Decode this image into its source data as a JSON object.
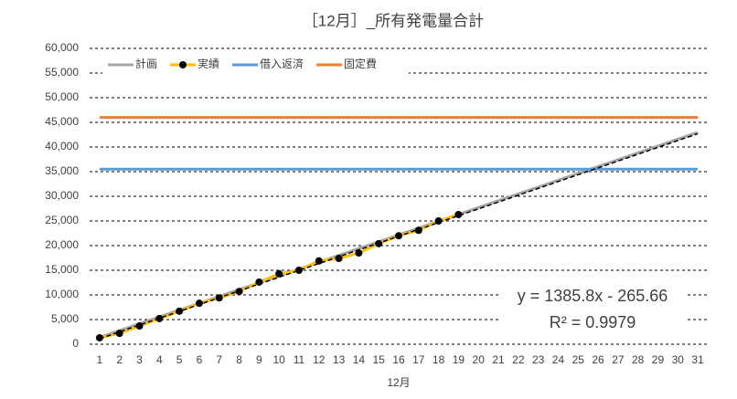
{
  "chart_data": {
    "type": "line",
    "title": "［12月］_所有発電量合計",
    "x_label": "12月",
    "categories": [
      "1",
      "2",
      "3",
      "4",
      "5",
      "6",
      "7",
      "8",
      "9",
      "10",
      "11",
      "12",
      "13",
      "14",
      "15",
      "16",
      "17",
      "18",
      "19",
      "20",
      "21",
      "22",
      "23",
      "24",
      "25",
      "26",
      "27",
      "28",
      "29",
      "30",
      "31"
    ],
    "series": [
      {
        "name": "計画",
        "color": "#a5a5a5",
        "values": [
          1386,
          2772,
          4158,
          5544,
          6930,
          8316,
          9702,
          11088,
          12474,
          13860,
          15246,
          16632,
          18018,
          19404,
          20790,
          22176,
          23562,
          24948,
          26334,
          27720,
          29106,
          30492,
          31878,
          33264,
          34650,
          36036,
          37422,
          38808,
          40194,
          41580,
          42966
        ]
      },
      {
        "name": "実績",
        "color": "#ffc000",
        "marker": "#000000",
        "values": [
          1300,
          2200,
          3700,
          5200,
          6700,
          8300,
          9400,
          10700,
          12600,
          14300,
          15000,
          16900,
          17400,
          18500,
          20400,
          22000,
          23100,
          25000,
          26300,
          null,
          null,
          null,
          null,
          null,
          null,
          null,
          null,
          null,
          null,
          null,
          null
        ]
      },
      {
        "name": "借入返済",
        "color": "#5b9bd5",
        "values": [
          35500,
          35500,
          35500,
          35500,
          35500,
          35500,
          35500,
          35500,
          35500,
          35500,
          35500,
          35500,
          35500,
          35500,
          35500,
          35500,
          35500,
          35500,
          35500,
          35500,
          35500,
          35500,
          35500,
          35500,
          35500,
          35500,
          35500,
          35500,
          35500,
          35500,
          35500
        ]
      },
      {
        "name": "固定費",
        "color": "#ed7d31",
        "values": [
          46000,
          46000,
          46000,
          46000,
          46000,
          46000,
          46000,
          46000,
          46000,
          46000,
          46000,
          46000,
          46000,
          46000,
          46000,
          46000,
          46000,
          46000,
          46000,
          46000,
          46000,
          46000,
          46000,
          46000,
          46000,
          46000,
          46000,
          46000,
          46000,
          46000,
          46000
        ]
      }
    ],
    "trendline": {
      "slope": 1385.8,
      "intercept": -265.66,
      "label": "y = 1385.8x - 265.66",
      "r2_label": "R² = 0.9979"
    },
    "ylim": [
      0,
      60000
    ],
    "yticks": [
      0,
      {
        "value": 5000,
        "label": "5,000"
      },
      {
        "value": 10000,
        "label": "10,000"
      },
      {
        "value": 15000,
        "label": "15,000"
      },
      {
        "value": 20000,
        "label": "20,000"
      },
      {
        "value": 25000,
        "label": "25,000"
      },
      {
        "value": 30000,
        "label": "30,000"
      },
      {
        "value": 35000,
        "label": "35,000"
      },
      {
        "value": 40000,
        "label": "40,000"
      },
      {
        "value": 45000,
        "label": "45,000"
      },
      {
        "value": 50000,
        "label": "50,000"
      },
      {
        "value": 55000,
        "label": "55,000"
      },
      {
        "value": 60000,
        "label": "60,000"
      }
    ],
    "grid": true,
    "legend": "top-left"
  }
}
